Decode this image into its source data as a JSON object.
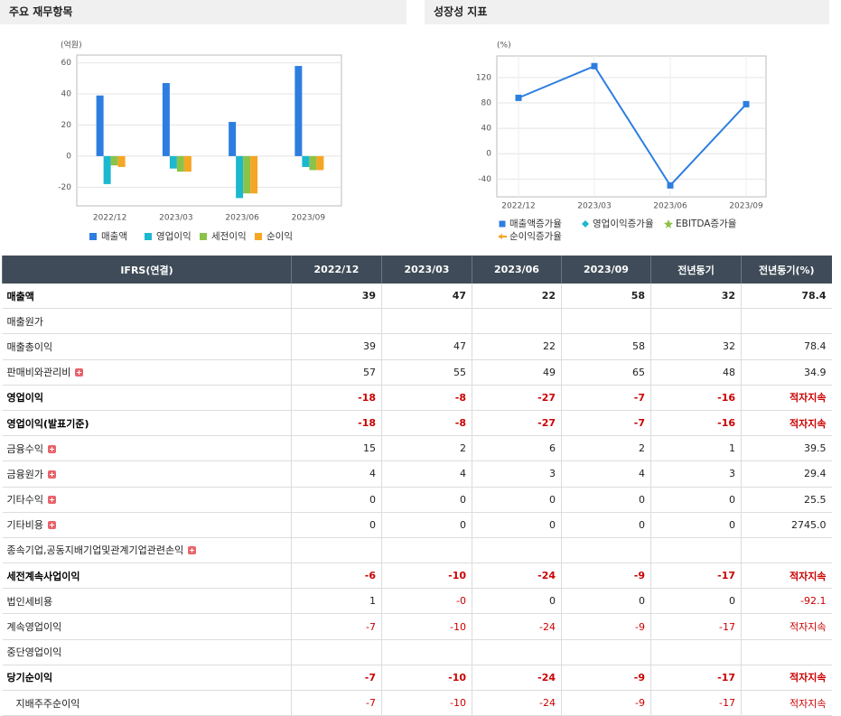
{
  "left_panel": {
    "title": "주요 재무항목"
  },
  "right_panel": {
    "title": "성장성 지표"
  },
  "chart_data": [
    {
      "type": "bar",
      "y_label": "(억원)",
      "categories": [
        "2022/12",
        "2023/03",
        "2023/06",
        "2023/09"
      ],
      "series": [
        {
          "name": "매출액",
          "color": "#2d7ee0",
          "values": [
            39,
            47,
            22,
            58
          ]
        },
        {
          "name": "영업이익",
          "color": "#1cb8cf",
          "values": [
            -18,
            -8,
            -27,
            -7
          ]
        },
        {
          "name": "세전이익",
          "color": "#8bc34a",
          "values": [
            -6,
            -10,
            -24,
            -9
          ]
        },
        {
          "name": "순이익",
          "color": "#f5a623",
          "values": [
            -7,
            -10,
            -24,
            -9
          ]
        }
      ],
      "ylim": [
        -32,
        65
      ],
      "yticks": [
        -20,
        0,
        20,
        40,
        60
      ],
      "grid": true
    },
    {
      "type": "line",
      "y_label": "(%)",
      "categories": [
        "2022/12",
        "2023/03",
        "2023/06",
        "2023/09"
      ],
      "series": [
        {
          "name": "매출액증가율",
          "color": "#2d7ee0",
          "marker": "square",
          "values": [
            88,
            138,
            -50,
            78
          ]
        },
        {
          "name": "영업이익증가율",
          "color": "#1cb8cf",
          "marker": "diamond",
          "values": [
            null,
            null,
            null,
            null
          ]
        },
        {
          "name": "EBITDA증가율",
          "color": "#8bc34a",
          "marker": "star",
          "values": [
            null,
            null,
            null,
            null
          ]
        },
        {
          "name": "순이익증가율",
          "color": "#f5a623",
          "marker": "arrow",
          "values": [
            null,
            null,
            null,
            null
          ]
        }
      ],
      "ylim": [
        -68,
        154
      ],
      "yticks": [
        -40,
        0,
        40,
        80,
        120
      ],
      "grid": true
    }
  ],
  "table": {
    "header": [
      "IFRS(연결)",
      "2022/12",
      "2023/03",
      "2023/06",
      "2023/09",
      "전년동기",
      "전년동기(%)"
    ],
    "rows": [
      {
        "label": "매출액",
        "bold": true,
        "values": [
          "39",
          "47",
          "22",
          "58",
          "32",
          "78.4"
        ]
      },
      {
        "label": "매출원가",
        "values": [
          null,
          null,
          null,
          null,
          null,
          null
        ]
      },
      {
        "label": "매출총이익",
        "values": [
          "39",
          "47",
          "22",
          "58",
          "32",
          "78.4"
        ]
      },
      {
        "label": "판매비와관리비",
        "expandable": true,
        "values": [
          "57",
          "55",
          "49",
          "65",
          "48",
          "34.9"
        ]
      },
      {
        "label": "영업이익",
        "bold": true,
        "values": [
          "-18",
          "-8",
          "-27",
          "-7",
          "-16",
          "적자지속"
        ]
      },
      {
        "label": "영업이익(발표기준)",
        "bold": true,
        "values": [
          "-18",
          "-8",
          "-27",
          "-7",
          "-16",
          "적자지속"
        ]
      },
      {
        "label": "금융수익",
        "expandable": true,
        "values": [
          "15",
          "2",
          "6",
          "2",
          "1",
          "39.5"
        ]
      },
      {
        "label": "금융원가",
        "expandable": true,
        "values": [
          "4",
          "4",
          "3",
          "4",
          "3",
          "29.4"
        ]
      },
      {
        "label": "기타수익",
        "expandable": true,
        "values": [
          "0",
          "0",
          "0",
          "0",
          "0",
          "25.5"
        ]
      },
      {
        "label": "기타비용",
        "expandable": true,
        "values": [
          "0",
          "0",
          "0",
          "0",
          "0",
          "2745.0"
        ]
      },
      {
        "label": "종속기업,공동지배기업및관계기업관련손익",
        "expandable": true,
        "values": [
          null,
          null,
          null,
          null,
          null,
          null
        ]
      },
      {
        "label": "세전계속사업이익",
        "bold": true,
        "values": [
          "-6",
          "-10",
          "-24",
          "-9",
          "-17",
          "적자지속"
        ]
      },
      {
        "label": "법인세비용",
        "values": [
          "1",
          "-0",
          "0",
          "0",
          "0",
          "-92.1"
        ]
      },
      {
        "label": "계속영업이익",
        "values": [
          "-7",
          "-10",
          "-24",
          "-9",
          "-17",
          "적자지속"
        ]
      },
      {
        "label": "중단영업이익",
        "values": [
          null,
          null,
          null,
          null,
          null,
          null
        ]
      },
      {
        "label": "당기순이익",
        "bold": true,
        "values": [
          "-7",
          "-10",
          "-24",
          "-9",
          "-17",
          "적자지속"
        ]
      },
      {
        "label": "지배주주순이익",
        "indent": true,
        "values": [
          "-7",
          "-10",
          "-24",
          "-9",
          "-17",
          "적자지속"
        ]
      }
    ]
  }
}
